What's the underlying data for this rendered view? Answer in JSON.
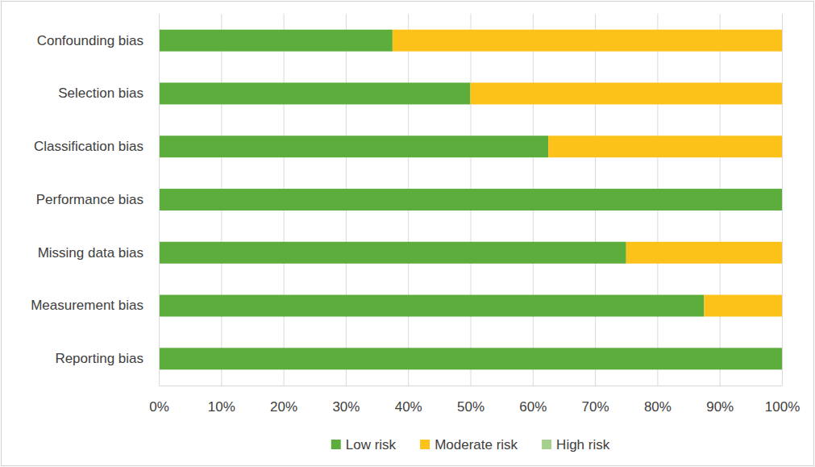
{
  "chart_data": {
    "type": "bar",
    "orientation": "horizontal",
    "stacked": true,
    "grid": true,
    "legend": "bottom",
    "categories": [
      "Confounding bias",
      "Selection bias",
      "Classification bias",
      "Performance bias",
      "Missing data bias",
      "Measurement bias",
      "Reporting bias"
    ],
    "series": [
      {
        "name": "Low risk",
        "color": "#5cad3c",
        "values": [
          37.5,
          50,
          62.5,
          100,
          75,
          87.5,
          100
        ]
      },
      {
        "name": "Moderate risk",
        "color": "#fdc21a",
        "values": [
          62.5,
          50,
          37.5,
          0,
          25,
          12.5,
          0
        ]
      },
      {
        "name": "High risk",
        "color": "#a8d08d",
        "values": [
          0,
          0,
          0,
          0,
          0,
          0,
          0
        ]
      }
    ],
    "xlim": [
      0,
      100
    ],
    "xticks": [
      {
        "value": 0,
        "label": "0%"
      },
      {
        "value": 10,
        "label": "10%"
      },
      {
        "value": 20,
        "label": "20%"
      },
      {
        "value": 30,
        "label": "30%"
      },
      {
        "value": 40,
        "label": "40%"
      },
      {
        "value": 50,
        "label": "50%"
      },
      {
        "value": 60,
        "label": "60%"
      },
      {
        "value": 70,
        "label": "70%"
      },
      {
        "value": 80,
        "label": "80%"
      },
      {
        "value": 90,
        "label": "90%"
      },
      {
        "value": 100,
        "label": "100%"
      }
    ]
  }
}
